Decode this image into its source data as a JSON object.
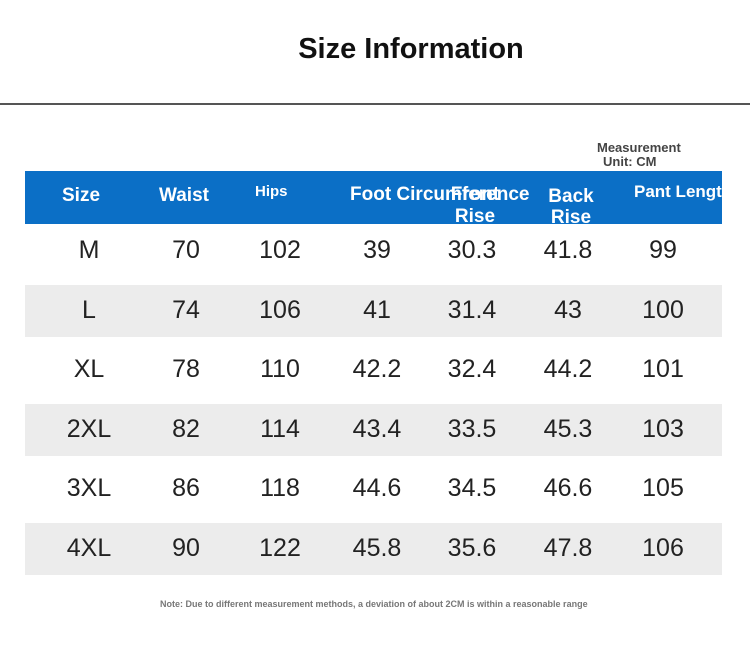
{
  "header": {
    "title": "Size Information"
  },
  "unit": [
    "Measurement",
    "Unit: CM"
  ],
  "table": {
    "columns": [
      "Size",
      "Waist",
      "Hips",
      "Foot Circumference",
      "Front Rise",
      "Back Rise",
      "Pant Length"
    ],
    "rows": [
      [
        "M",
        "70",
        "102",
        "39",
        "30.3",
        "41.8",
        "99"
      ],
      [
        "L",
        "74",
        "106",
        "41",
        "31.4",
        "43",
        "100"
      ],
      [
        "XL",
        "78",
        "110",
        "42.2",
        "32.4",
        "44.2",
        "101"
      ],
      [
        "2XL",
        "82",
        "114",
        "43.4",
        "33.5",
        "45.3",
        "103"
      ],
      [
        "3XL",
        "86",
        "118",
        "44.6",
        "34.5",
        "46.6",
        "105"
      ],
      [
        "4XL",
        "90",
        "122",
        "45.8",
        "35.6",
        "47.8",
        "106"
      ]
    ]
  },
  "note": "Note: Due to different measurement methods, a deviation of about 2CM is within a reasonable range"
}
